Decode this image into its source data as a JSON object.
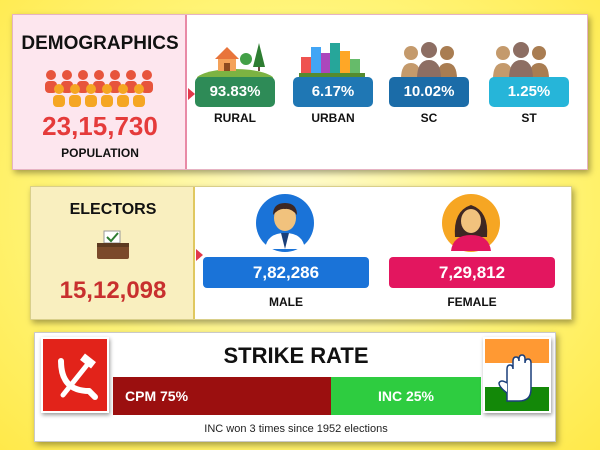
{
  "demographics": {
    "title": "DEMOGRAPHICS",
    "population": "23,15,730",
    "population_label": "POPULATION",
    "stats": [
      {
        "value": "93.83%",
        "label": "RURAL",
        "color": "#2e8b57",
        "icon": "rural-icon"
      },
      {
        "value": "6.17%",
        "label": "URBAN",
        "color": "#1f77b4",
        "icon": "city-icon"
      },
      {
        "value": "10.02%",
        "label": "SC",
        "color": "#1b6ca8",
        "icon": "people-group-icon"
      },
      {
        "value": "1.25%",
        "label": "ST",
        "color": "#26b5d9",
        "icon": "people-group-icon"
      }
    ]
  },
  "electors": {
    "title": "ELECTORS",
    "total": "15,12,098",
    "male": {
      "value": "7,82,286",
      "label": "MALE",
      "color": "#1a73d8"
    },
    "female": {
      "value": "7,29,812",
      "label": "FEMALE",
      "color": "#e3165f"
    }
  },
  "strike_rate": {
    "title": "STRIKE RATE",
    "cpm_label": "CPM 75%",
    "inc_label": "INC 25%",
    "cpm_share": 0.75,
    "inc_share": 0.25,
    "note": "INC won 3 times since 1952 elections"
  }
}
